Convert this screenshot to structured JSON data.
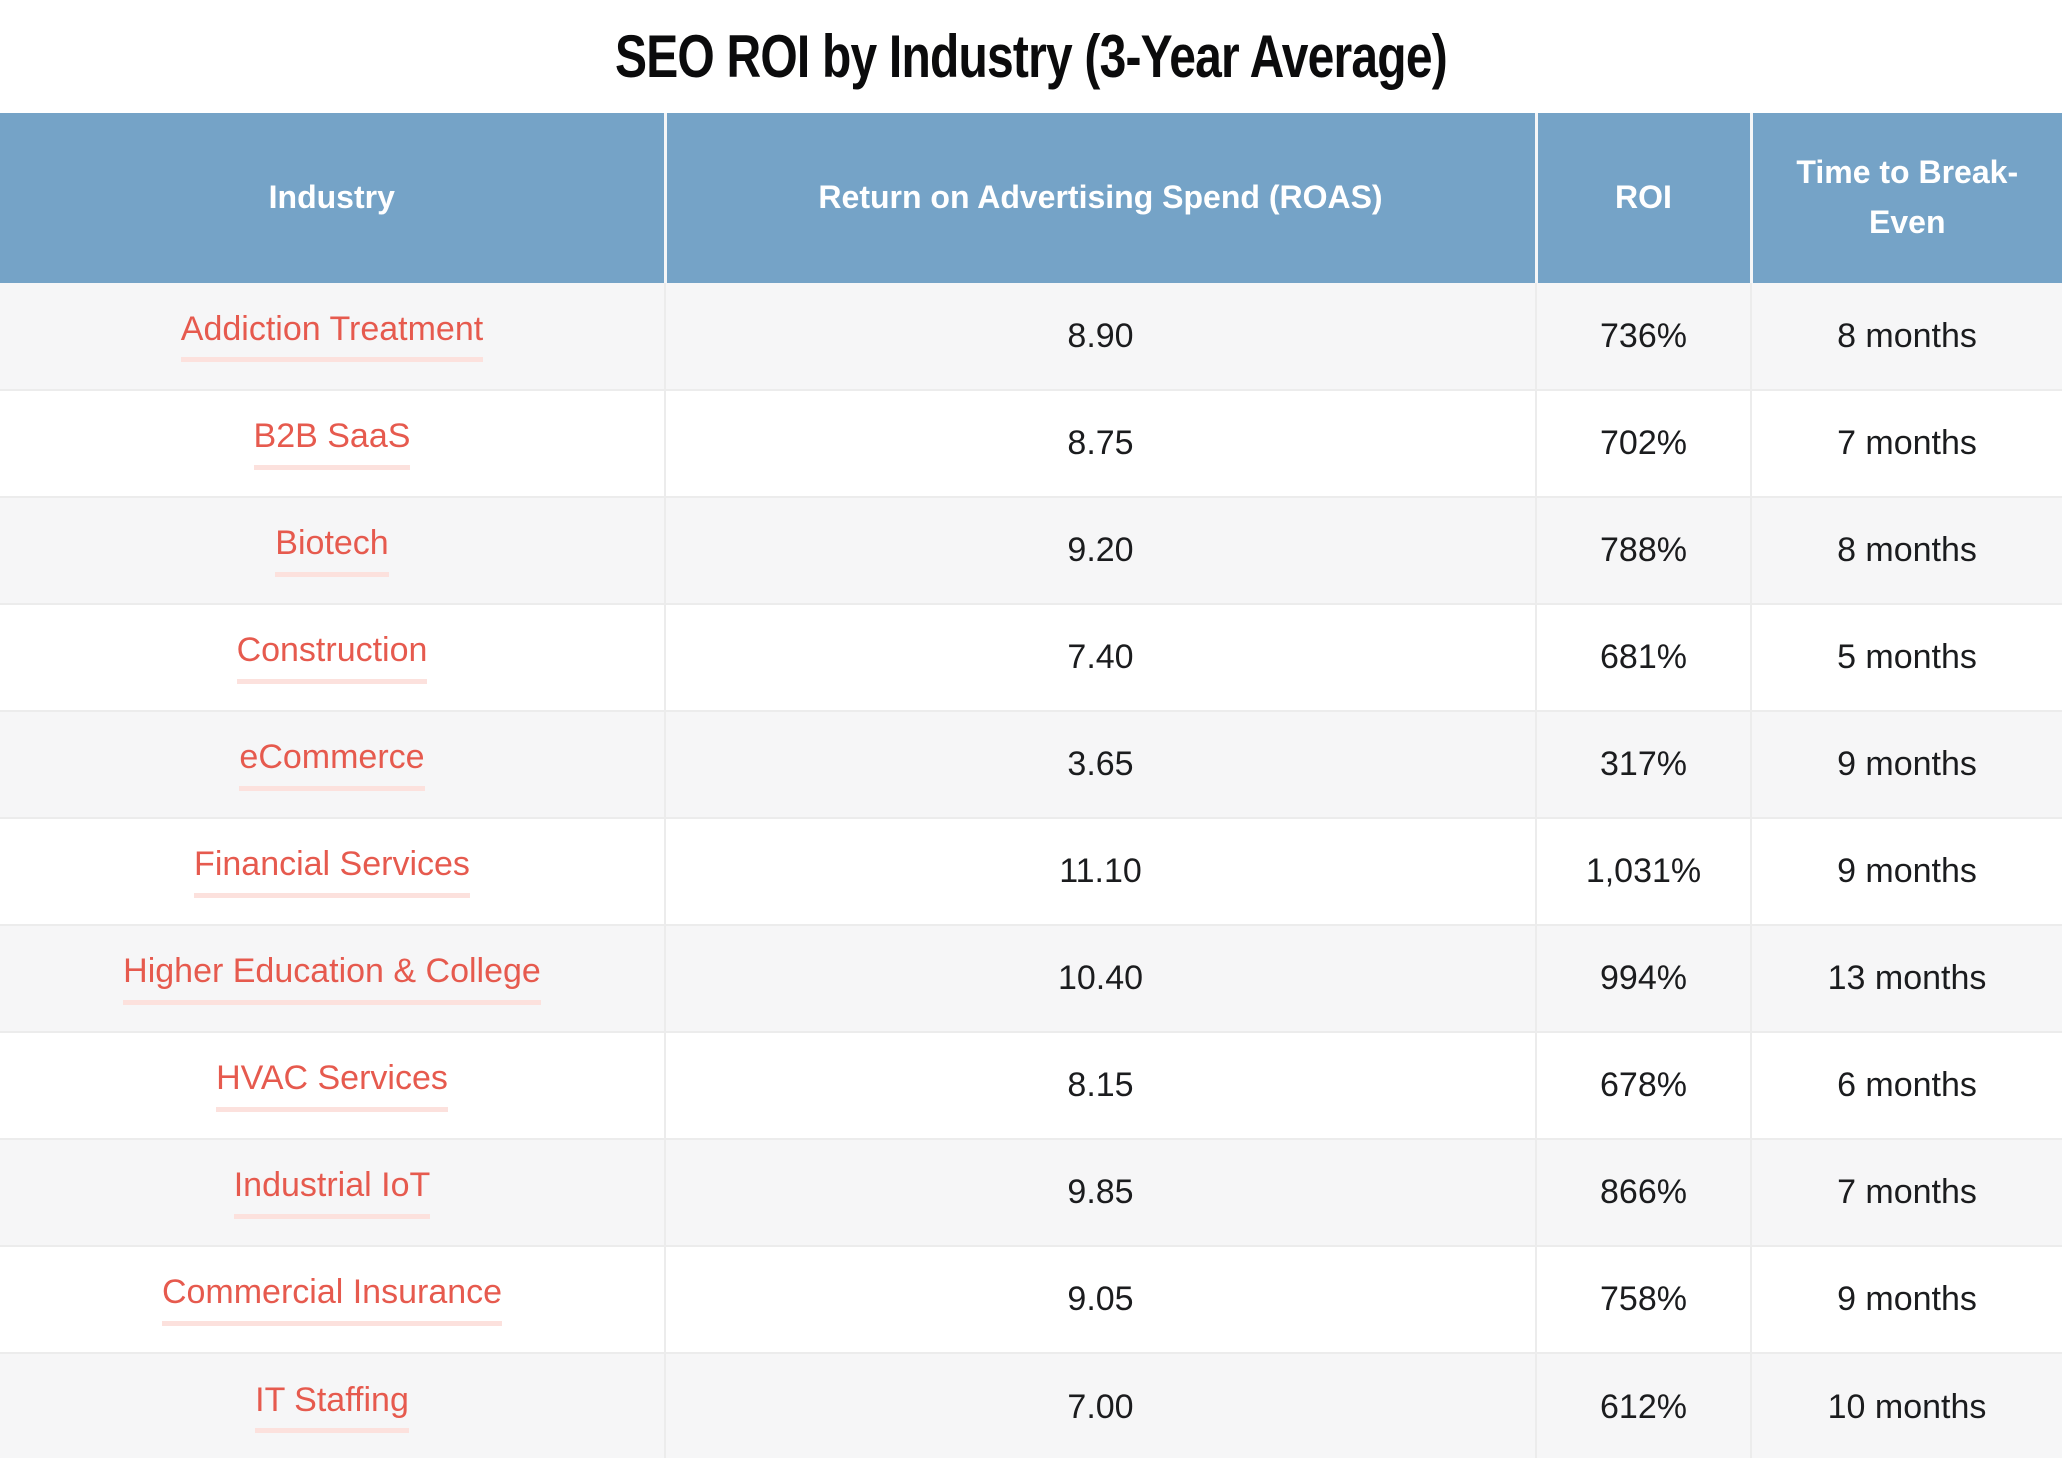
{
  "title": "SEO ROI by Industry (3-Year Average)",
  "table": {
    "columns": [
      "Industry",
      "Return on Advertising Spend (ROAS)",
      "ROI",
      "Time to Break-Even"
    ],
    "rows": [
      {
        "industry": "Addiction Treatment",
        "roas": "8.90",
        "roi": "736%",
        "breakeven": "8 months"
      },
      {
        "industry": "B2B SaaS",
        "roas": "8.75",
        "roi": "702%",
        "breakeven": "7 months"
      },
      {
        "industry": "Biotech",
        "roas": "9.20",
        "roi": "788%",
        "breakeven": "8 months"
      },
      {
        "industry": "Construction",
        "roas": "7.40",
        "roi": "681%",
        "breakeven": "5 months"
      },
      {
        "industry": "eCommerce",
        "roas": "3.65",
        "roi": "317%",
        "breakeven": "9 months"
      },
      {
        "industry": "Financial Services",
        "roas": "11.10",
        "roi": "1,031%",
        "breakeven": "9 months"
      },
      {
        "industry": "Higher Education & College",
        "roas": "10.40",
        "roi": "994%",
        "breakeven": "13 months"
      },
      {
        "industry": "HVAC Services",
        "roas": "8.15",
        "roi": "678%",
        "breakeven": "6 months"
      },
      {
        "industry": "Industrial IoT",
        "roas": "9.85",
        "roi": "866%",
        "breakeven": "7 months"
      },
      {
        "industry": "Commercial Insurance",
        "roas": "9.05",
        "roi": "758%",
        "breakeven": "9 months"
      },
      {
        "industry": "IT Staffing",
        "roas": "7.00",
        "roi": "612%",
        "breakeven": "10 months"
      }
    ]
  },
  "colors": {
    "header_bg": "#75a3c7",
    "header_text": "#ffffff",
    "link": "#e65a4e",
    "link_underline": "#fce1dd",
    "row_alt_bg": "#f6f6f7",
    "row_border": "#ececec",
    "body_text": "#1b1c1e"
  },
  "chart_data": {
    "type": "table",
    "title": "SEO ROI by Industry (3-Year Average)",
    "columns": [
      "Industry",
      "Return on Advertising Spend (ROAS)",
      "ROI",
      "Time to Break-Even"
    ],
    "rows": [
      [
        "Addiction Treatment",
        8.9,
        "736%",
        "8 months"
      ],
      [
        "B2B SaaS",
        8.75,
        "702%",
        "7 months"
      ],
      [
        "Biotech",
        9.2,
        "788%",
        "8 months"
      ],
      [
        "Construction",
        7.4,
        "681%",
        "5 months"
      ],
      [
        "eCommerce",
        3.65,
        "317%",
        "9 months"
      ],
      [
        "Financial Services",
        11.1,
        "1,031%",
        "9 months"
      ],
      [
        "Higher Education & College",
        10.4,
        "994%",
        "13 months"
      ],
      [
        "HVAC Services",
        8.15,
        "678%",
        "6 months"
      ],
      [
        "Industrial IoT",
        9.85,
        "866%",
        "7 months"
      ],
      [
        "Commercial Insurance",
        9.05,
        "758%",
        "9 months"
      ],
      [
        "IT Staffing",
        7.0,
        "612%",
        "10 months"
      ]
    ]
  }
}
